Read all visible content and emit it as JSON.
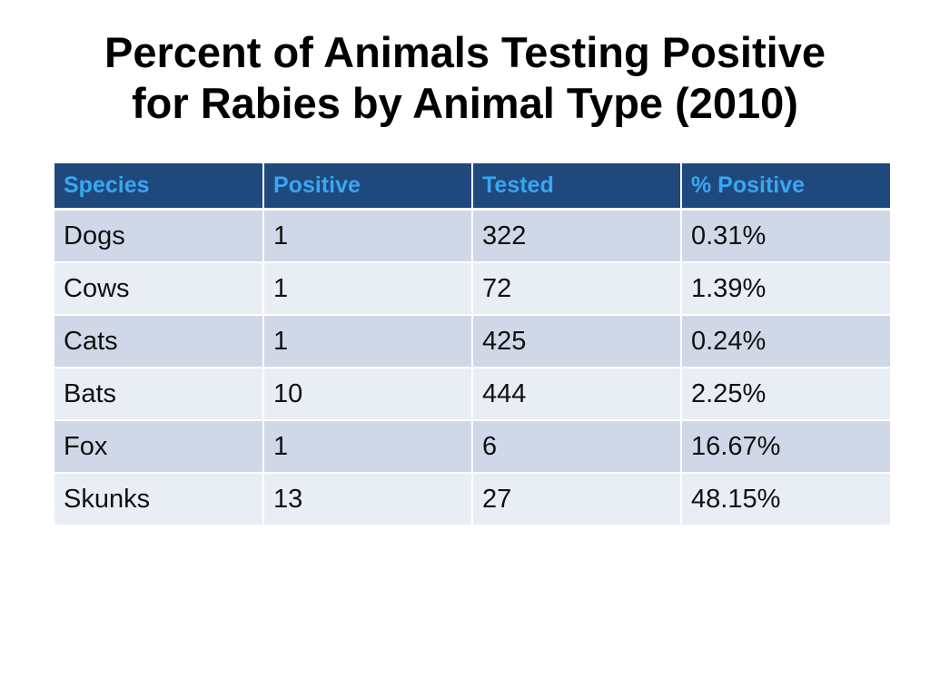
{
  "slide": {
    "title_line1": "Percent of Animals Testing Positive",
    "title_line2": "for Rabies by Animal Type (2010)"
  },
  "chart_data": {
    "type": "table",
    "title": "Percent of Animals Testing Positive for Rabies by Animal Type (2010)",
    "columns": [
      "Species",
      "Positive",
      "Tested",
      "% Positive"
    ],
    "rows": [
      [
        "Dogs",
        "1",
        "322",
        "0.31%"
      ],
      [
        "Cows",
        "1",
        "72",
        "1.39%"
      ],
      [
        "Cats",
        "1",
        "425",
        "0.24%"
      ],
      [
        "Bats",
        "10",
        "444",
        "2.25%"
      ],
      [
        "Fox",
        "1",
        "6",
        "16.67%"
      ],
      [
        "Skunks",
        "13",
        "27",
        "48.15%"
      ]
    ]
  },
  "colors": {
    "header_bg": "#1f497d",
    "header_text": "#39a7f0",
    "row_odd": "#d0d8e8",
    "row_even": "#e9edf4"
  }
}
